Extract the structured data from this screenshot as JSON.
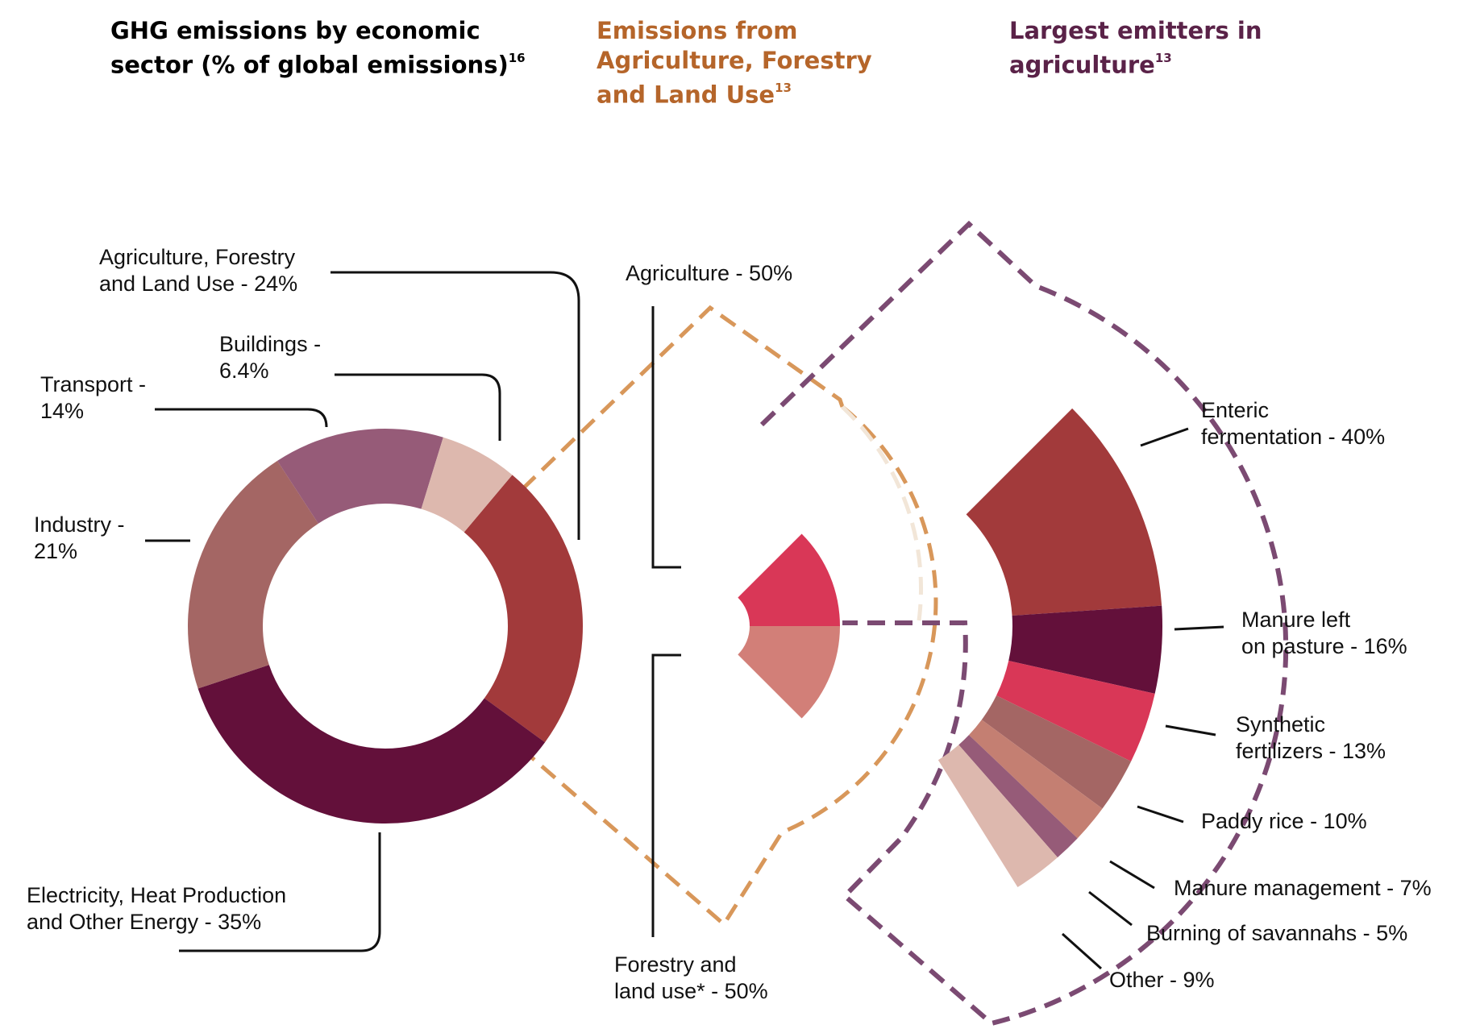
{
  "headings": {
    "sector": {
      "text": "GHG emissions by economic\nsector (% of global emissions)",
      "sup": "16",
      "color": "#000000"
    },
    "afolu": {
      "text": "Emissions from\nAgriculture, Forestry\nand Land Use",
      "sup": "13",
      "color": "#b5652a"
    },
    "emitters": {
      "text": "Largest emitters in\nagriculture",
      "sup": "13",
      "color": "#5a2248"
    }
  },
  "chart_data": [
    {
      "type": "pie",
      "variant": "donut",
      "title": "GHG emissions by economic sector (% of global emissions)",
      "slices": [
        {
          "label": "Agriculture, Forestry and Land Use",
          "value": 24,
          "display": "Agriculture, Forestry\nand Land Use - 24%",
          "color": "#a23a3b"
        },
        {
          "label": "Electricity, Heat Production and Other Energy",
          "value": 35,
          "display": "Electricity, Heat Production\nand Other Energy - 35%",
          "color": "#63103a"
        },
        {
          "label": "Industry",
          "value": 21,
          "display": "Industry -\n21%",
          "color": "#a46664"
        },
        {
          "label": "Transport",
          "value": 14,
          "display": "Transport -\n14%",
          "color": "#965b78"
        },
        {
          "label": "Buildings",
          "value": 6.4,
          "display": "Buildings -\n6.4%",
          "color": "#ddb8ae"
        }
      ]
    },
    {
      "type": "pie",
      "variant": "fan",
      "title": "Emissions from Agriculture, Forestry and Land Use",
      "slices": [
        {
          "label": "Agriculture",
          "value": 50,
          "display": "Agriculture - 50%",
          "color": "#d93757"
        },
        {
          "label": "Forestry and land use*",
          "value": 50,
          "display": "Forestry and\nland use* - 50%",
          "color": "#d27f78"
        }
      ]
    },
    {
      "type": "pie",
      "variant": "fan",
      "title": "Largest emitters in agriculture",
      "slices": [
        {
          "label": "Enteric fermentation",
          "value": 40,
          "display": "Enteric\nfermentation - 40%",
          "color": "#a23a3b"
        },
        {
          "label": "Manure left on pasture",
          "value": 16,
          "display": "Manure left\non pasture - 16%",
          "color": "#63103a"
        },
        {
          "label": "Synthetic fertilizers",
          "value": 13,
          "display": "Synthetic\nfertilizers - 13%",
          "color": "#d93757"
        },
        {
          "label": "Paddy rice",
          "value": 10,
          "display": "Paddy rice - 10%",
          "color": "#a46664"
        },
        {
          "label": "Manure management",
          "value": 7,
          "display": "Manure management - 7%",
          "color": "#c47f72"
        },
        {
          "label": "Burning of savannahs",
          "value": 5,
          "display": "Burning of savannahs - 5%",
          "color": "#965b78"
        },
        {
          "label": "Other",
          "value": 9,
          "display": "Other - 9%",
          "color": "#ddb8ae"
        }
      ]
    }
  ],
  "colors": {
    "afolu_outline": "#d8975a",
    "agriculture_outline": "#7b4a72",
    "leader_line": "#111111"
  }
}
